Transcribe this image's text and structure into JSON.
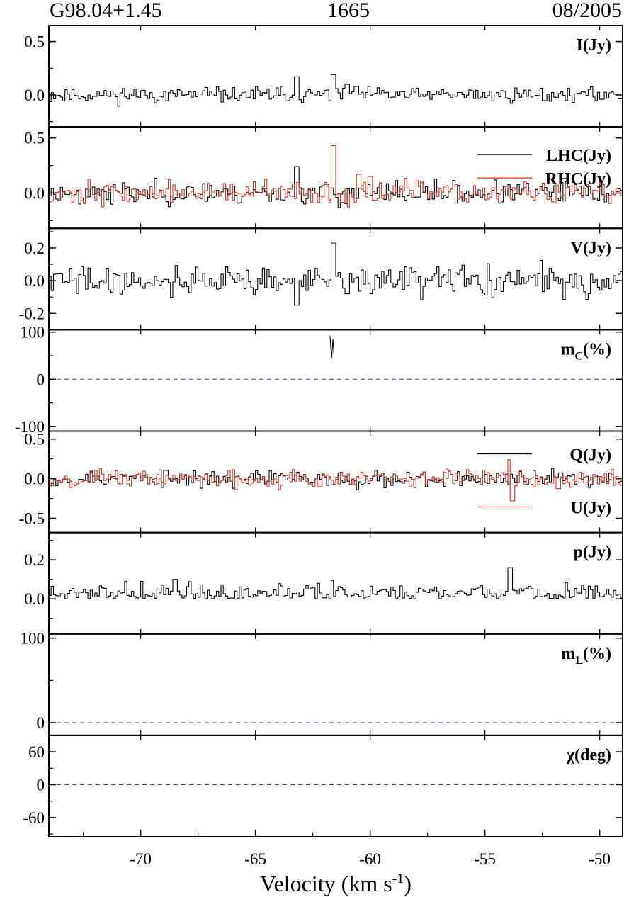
{
  "header": {
    "source": "G98.04+1.45",
    "frequency": "1665",
    "epoch": "08/2005"
  },
  "colors": {
    "primary": "#000000",
    "secondary": "#d23a2a",
    "zero_line": "#3b3bbf"
  },
  "chart_data": {
    "type": "line",
    "style": "step",
    "x": {
      "label": "Velocity (km s",
      "label_sup": "-1",
      "label_close": ")",
      "range": [
        -74,
        -49
      ],
      "ticks": [
        -70,
        -65,
        -60,
        -55,
        -50
      ],
      "tick_labels": [
        "-70",
        "-65",
        "-60",
        "-55",
        "-50"
      ]
    },
    "channel_count": 250,
    "panels": [
      {
        "id": "I",
        "label": "I(Jy)",
        "ylim": [
          -0.3,
          0.65
        ],
        "yticks": [
          0.0,
          0.5
        ],
        "ytick_labels": [
          "0.0",
          "0.5"
        ],
        "series": [
          {
            "name": "",
            "color": "primary",
            "noise": 0.035,
            "seed": 11,
            "features": [
              {
                "v": -63.2,
                "amp": 0.17
              },
              {
                "v": -61.6,
                "amp": 0.19
              },
              {
                "v": -61.0,
                "amp": 0.1
              },
              {
                "v": -60.6,
                "amp": 0.08
              }
            ]
          }
        ]
      },
      {
        "id": "LR",
        "label": "",
        "ylim": [
          -0.32,
          0.6
        ],
        "yticks": [
          0.0,
          0.5
        ],
        "ytick_labels": [
          "0.0",
          "0.5"
        ],
        "legend": [
          "LHC(Jy)",
          "RHC(Jy)"
        ],
        "series": [
          {
            "name": "LHC(Jy)",
            "color": "primary",
            "noise": 0.05,
            "seed": 23,
            "features": [
              {
                "v": -63.2,
                "amp": 0.24
              },
              {
                "v": -61.9,
                "amp": 0.08
              }
            ]
          },
          {
            "name": "RHC(Jy)",
            "color": "secondary",
            "noise": 0.05,
            "seed": 37,
            "features": [
              {
                "v": -61.6,
                "amp": 0.43
              },
              {
                "v": -60.5,
                "amp": 0.17
              },
              {
                "v": -60.0,
                "amp": 0.15
              }
            ]
          }
        ]
      },
      {
        "id": "V",
        "label": "V(Jy)",
        "ylim": [
          -0.3,
          0.32
        ],
        "yticks": [
          -0.2,
          0.0,
          0.2
        ],
        "ytick_labels": [
          "-0.2",
          "0.0",
          "0.2"
        ],
        "series": [
          {
            "name": "",
            "color": "primary",
            "noise": 0.045,
            "seed": 41,
            "features": [
              {
                "v": -63.2,
                "amp": -0.15
              },
              {
                "v": -61.6,
                "amp": 0.23
              },
              {
                "v": -61.0,
                "amp": -0.08
              }
            ]
          }
        ]
      },
      {
        "id": "mC",
        "label": "m",
        "label_sub": "C",
        "label_tail": "(%)",
        "ylim": [
          -110,
          105
        ],
        "yticks": [
          -100,
          0,
          100
        ],
        "ytick_labels": [
          "-100",
          "0",
          "100"
        ],
        "zero_line": true,
        "segments": [
          [
            [
              -61.75,
              92
            ],
            [
              -61.68,
              45
            ],
            [
              -61.62,
              85
            ],
            [
              -61.58,
              55
            ]
          ]
        ]
      },
      {
        "id": "QU",
        "label": "",
        "ylim": [
          -0.68,
          0.6
        ],
        "yticks": [
          -0.5,
          0.0,
          0.5
        ],
        "ytick_labels": [
          "-0.5",
          "0.0",
          "0.5"
        ],
        "legend": [
          "Q(Jy)",
          "U(Jy)"
        ],
        "series": [
          {
            "name": "Q(Jy)",
            "color": "primary",
            "noise": 0.055,
            "seed": 53,
            "features": []
          },
          {
            "name": "U(Jy)",
            "color": "secondary",
            "noise": 0.055,
            "seed": 67,
            "features": [
              {
                "v": -53.9,
                "amp": 0.24
              },
              {
                "v": -53.8,
                "amp": -0.28
              }
            ]
          }
        ]
      },
      {
        "id": "p",
        "label": "p(Jy)",
        "ylim": [
          -0.18,
          0.34
        ],
        "yticks": [
          0.0,
          0.2
        ],
        "ytick_labels": [
          "0.0",
          "0.2"
        ],
        "series": [
          {
            "name": "",
            "color": "primary",
            "noise": 0.04,
            "seed": 71,
            "positive": true,
            "features": [
              {
                "v": -53.9,
                "amp": 0.16
              },
              {
                "v": -68.5,
                "amp": 0.1
              }
            ]
          }
        ]
      },
      {
        "id": "mL",
        "label": "m",
        "label_sub": "L",
        "label_tail": "(%)",
        "ylim": [
          -15,
          105
        ],
        "yticks": [
          0,
          100
        ],
        "ytick_labels": [
          "0",
          "100"
        ],
        "zero_line": true,
        "segments": []
      },
      {
        "id": "chi",
        "label": "χ(deg)",
        "ylim": [
          -95,
          90
        ],
        "yticks": [
          -60,
          0,
          60
        ],
        "ytick_labels": [
          "-60",
          "0",
          "60"
        ],
        "zero_line": true,
        "segments": []
      }
    ]
  }
}
